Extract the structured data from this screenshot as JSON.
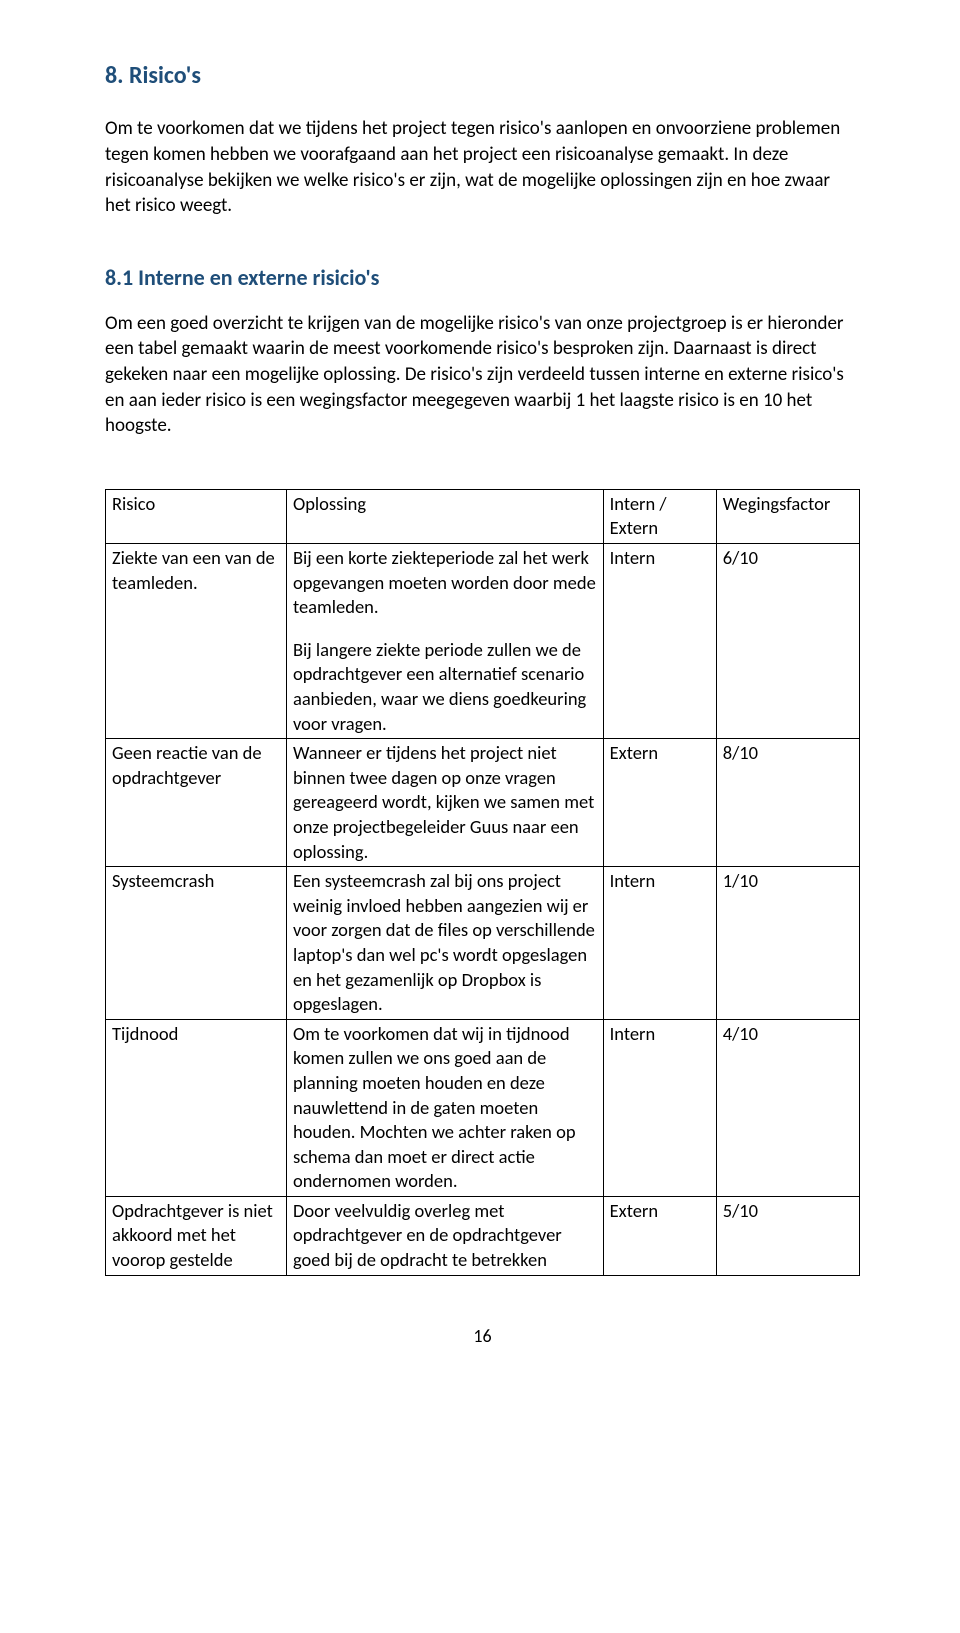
{
  "colors": {
    "heading": "#1f4e79",
    "body": "#000000",
    "border": "#000000",
    "background": "#ffffff"
  },
  "fonts": {
    "family": "Calibri",
    "body_size_pt": 11,
    "heading_size_pt": 13
  },
  "page_number": "16",
  "section": {
    "title": "8. Risico's",
    "intro1": "Om te voorkomen dat we tijdens het project tegen risico's aanlopen en onvoorziene problemen tegen komen hebben we voorafgaand aan het project een risicoanalyse gemaakt. In deze risicoanalyse bekijken we welke risico's er zijn, wat de mogelijke oplossingen zijn en hoe zwaar het risico weegt.",
    "sub_title": "8.1 Interne en externe risicio's",
    "intro2": "Om een goed overzicht te krijgen van de mogelijke risico's van onze projectgroep is er hieronder een tabel gemaakt waarin de meest voorkomende risico's besproken zijn. Daarnaast is direct gekeken naar een mogelijke oplossing. De risico's zijn verdeeld tussen interne en externe risico's en aan ieder risico is een wegingsfactor meegegeven waarbij 1 het laagste risico is en 10 het hoogste."
  },
  "table": {
    "headers": {
      "risico": "Risico",
      "oplossing": "Oplossing",
      "intern_extern": "Intern / Extern",
      "wegingsfactor": "Wegingsfactor"
    },
    "rows": [
      {
        "risico": "Ziekte van een van de teamleden.",
        "oplossing_a": "Bij een korte ziekteperiode zal het werk opgevangen moeten worden door mede teamleden.",
        "oplossing_b": "Bij langere ziekte periode zullen we de opdrachtgever een alternatief scenario aanbieden, waar we diens goedkeuring voor vragen.",
        "intern_extern": "Intern",
        "wegingsfactor": "6/10"
      },
      {
        "risico": "Geen reactie van de opdrachtgever",
        "oplossing_a": "Wanneer er tijdens het project niet binnen twee dagen op onze vragen gereageerd wordt, kijken we samen met onze projectbegeleider Guus naar een oplossing.",
        "oplossing_b": "",
        "intern_extern": "Extern",
        "wegingsfactor": "8/10"
      },
      {
        "risico": "Systeemcrash",
        "oplossing_a": "Een systeemcrash zal bij ons project weinig invloed hebben aangezien wij er voor zorgen dat de files op verschillende laptop's dan wel pc's wordt opgeslagen en het gezamenlijk op Dropbox is opgeslagen.",
        "oplossing_b": "",
        "intern_extern": "Intern",
        "wegingsfactor": "1/10"
      },
      {
        "risico": "Tijdnood",
        "oplossing_a": "Om te voorkomen dat wij in tijdnood komen zullen we ons goed aan de planning moeten houden en deze nauwlettend in de gaten moeten houden. Mochten we achter raken op schema dan moet er direct actie ondernomen worden.",
        "oplossing_b": "",
        "intern_extern": "Intern",
        "wegingsfactor": "4/10"
      },
      {
        "risico": "Opdrachtgever is niet akkoord met het voorop gestelde",
        "oplossing_a": "Door veelvuldig overleg met opdrachtgever en de opdrachtgever goed bij de opdracht te betrekken",
        "oplossing_b": "",
        "intern_extern": "Extern",
        "wegingsfactor": "5/10"
      }
    ]
  }
}
